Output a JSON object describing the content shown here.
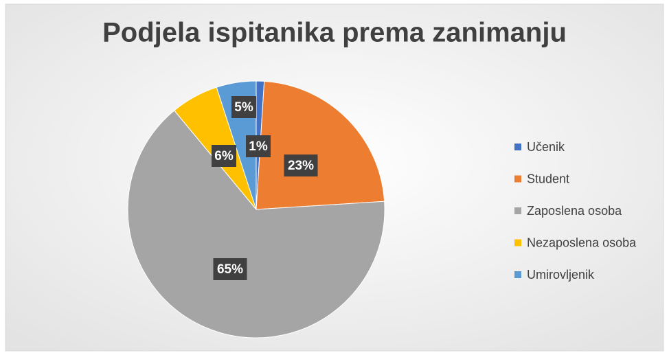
{
  "chart_data": {
    "type": "pie",
    "title": "Podjela ispitanika prema zanimanju",
    "categories": [
      "Učenik",
      "Student",
      "Zaposlena osoba",
      "Nezaposlena osoba",
      "Umirovljenik"
    ],
    "values": [
      1,
      23,
      65,
      6,
      5
    ],
    "value_labels": [
      "1%",
      "23%",
      "65%",
      "6%",
      "5%"
    ],
    "colors": [
      "#4472c4",
      "#ed7d31",
      "#a5a5a5",
      "#ffc000",
      "#5b9bd5"
    ],
    "legend": "right"
  }
}
